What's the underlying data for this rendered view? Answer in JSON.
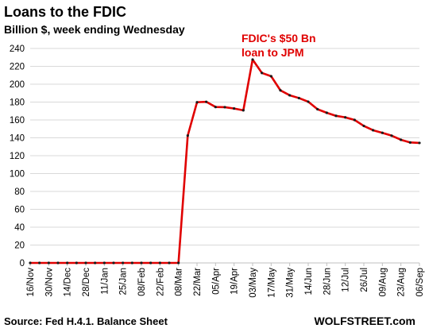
{
  "chart_data": {
    "type": "line",
    "title": "Loans to the FDIC",
    "subtitle": "Billion $, week ending Wednesday",
    "xlabel": "",
    "ylabel": "",
    "ylim": [
      0,
      240
    ],
    "yticks": [
      0,
      20,
      40,
      60,
      80,
      100,
      120,
      140,
      160,
      180,
      200,
      220,
      240
    ],
    "x_tick_labels": [
      "16/Nov",
      "30/Nov",
      "14/Dec",
      "28/Dec",
      "11/Jan",
      "25/Jan",
      "08/Feb",
      "22/Feb",
      "08/Mar",
      "22/Mar",
      "05/Apr",
      "19/Apr",
      "03/May",
      "17/May",
      "31/May",
      "14/Jun",
      "28/Jun",
      "12/Jul",
      "26/Jul",
      "09/Aug",
      "23/Aug",
      "06/Sep"
    ],
    "x": [
      "16/Nov",
      "23/Nov",
      "30/Nov",
      "07/Dec",
      "14/Dec",
      "21/Dec",
      "28/Dec",
      "04/Jan",
      "11/Jan",
      "18/Jan",
      "25/Jan",
      "01/Feb",
      "08/Feb",
      "15/Feb",
      "22/Feb",
      "01/Mar",
      "08/Mar",
      "15/Mar",
      "22/Mar",
      "29/Mar",
      "05/Apr",
      "12/Apr",
      "19/Apr",
      "26/Apr",
      "03/May",
      "10/May",
      "17/May",
      "24/May",
      "31/May",
      "07/Jun",
      "14/Jun",
      "21/Jun",
      "28/Jun",
      "05/Jul",
      "12/Jul",
      "19/Jul",
      "26/Jul",
      "02/Aug",
      "09/Aug",
      "16/Aug",
      "23/Aug",
      "30/Aug",
      "06/Sep"
    ],
    "series": [
      {
        "values": [
          0,
          0,
          0,
          0,
          0,
          0,
          0,
          0,
          0,
          0,
          0,
          0,
          0,
          0,
          0,
          0,
          0,
          142.5,
          179.8,
          180.3,
          174.5,
          174.3,
          172.8,
          170.8,
          227.6,
          212.6,
          208.9,
          193.1,
          187.6,
          184.5,
          180.4,
          172.0,
          168.0,
          164.6,
          162.9,
          160.0,
          153.3,
          148.5,
          145.6,
          142.4,
          137.8,
          134.8,
          134.3
        ],
        "color": "#e00000"
      }
    ],
    "grid": true,
    "annotations": [
      {
        "lines": [
          "FDIC's $50 Bn",
          "loan to JPM"
        ],
        "anchor_x": "03/May",
        "color": "#e00000"
      }
    ],
    "source": "Source: Fed H.4.1. Balance Sheet",
    "watermark": "WOLFSTREET.com"
  },
  "colors": {
    "line": "#e00000",
    "marker": "#1a1a1a",
    "grid": "#d9d9d9",
    "axis": "#bfbfbf",
    "text": "#000000"
  }
}
